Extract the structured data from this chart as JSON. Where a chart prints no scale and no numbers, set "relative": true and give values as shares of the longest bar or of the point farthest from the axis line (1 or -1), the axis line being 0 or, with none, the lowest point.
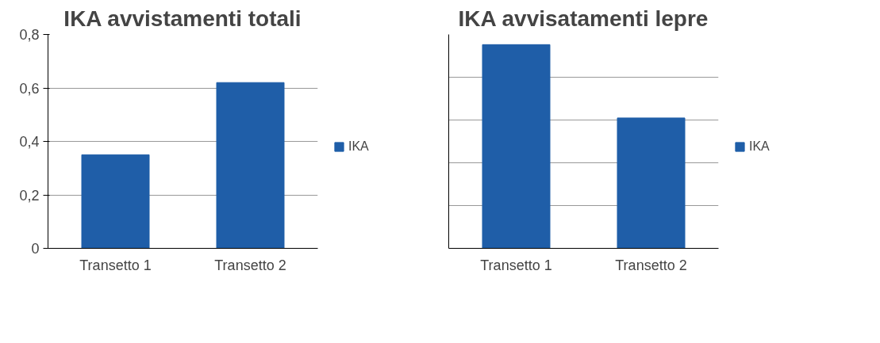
{
  "chart_data": [
    {
      "type": "bar",
      "title": "IKA avvistamenti totali",
      "categories": [
        "Transetto 1",
        "Transetto 2"
      ],
      "series": [
        {
          "name": "IKA",
          "color": "#1f5ea8",
          "values": [
            0.35,
            0.62
          ]
        }
      ],
      "ylim": [
        0,
        0.8
      ],
      "yticks": [
        {
          "value": 0,
          "label": "0"
        },
        {
          "value": 0.2,
          "label": "0,2"
        },
        {
          "value": 0.4,
          "label": "0,4"
        },
        {
          "value": 0.6,
          "label": "0,6"
        },
        {
          "value": 0.8,
          "label": "0,8"
        }
      ],
      "grid": "y",
      "legend": "right"
    },
    {
      "type": "bar",
      "title": "IKA avvisatamenti lepre",
      "categories": [
        "Transetto 1",
        "Transetto 2"
      ],
      "series": [
        {
          "name": "IKA",
          "color": "#1f5ea8",
          "values": [
            1,
            0.64
          ]
        }
      ],
      "relative": true,
      "grid": "y",
      "legend": "right"
    }
  ]
}
